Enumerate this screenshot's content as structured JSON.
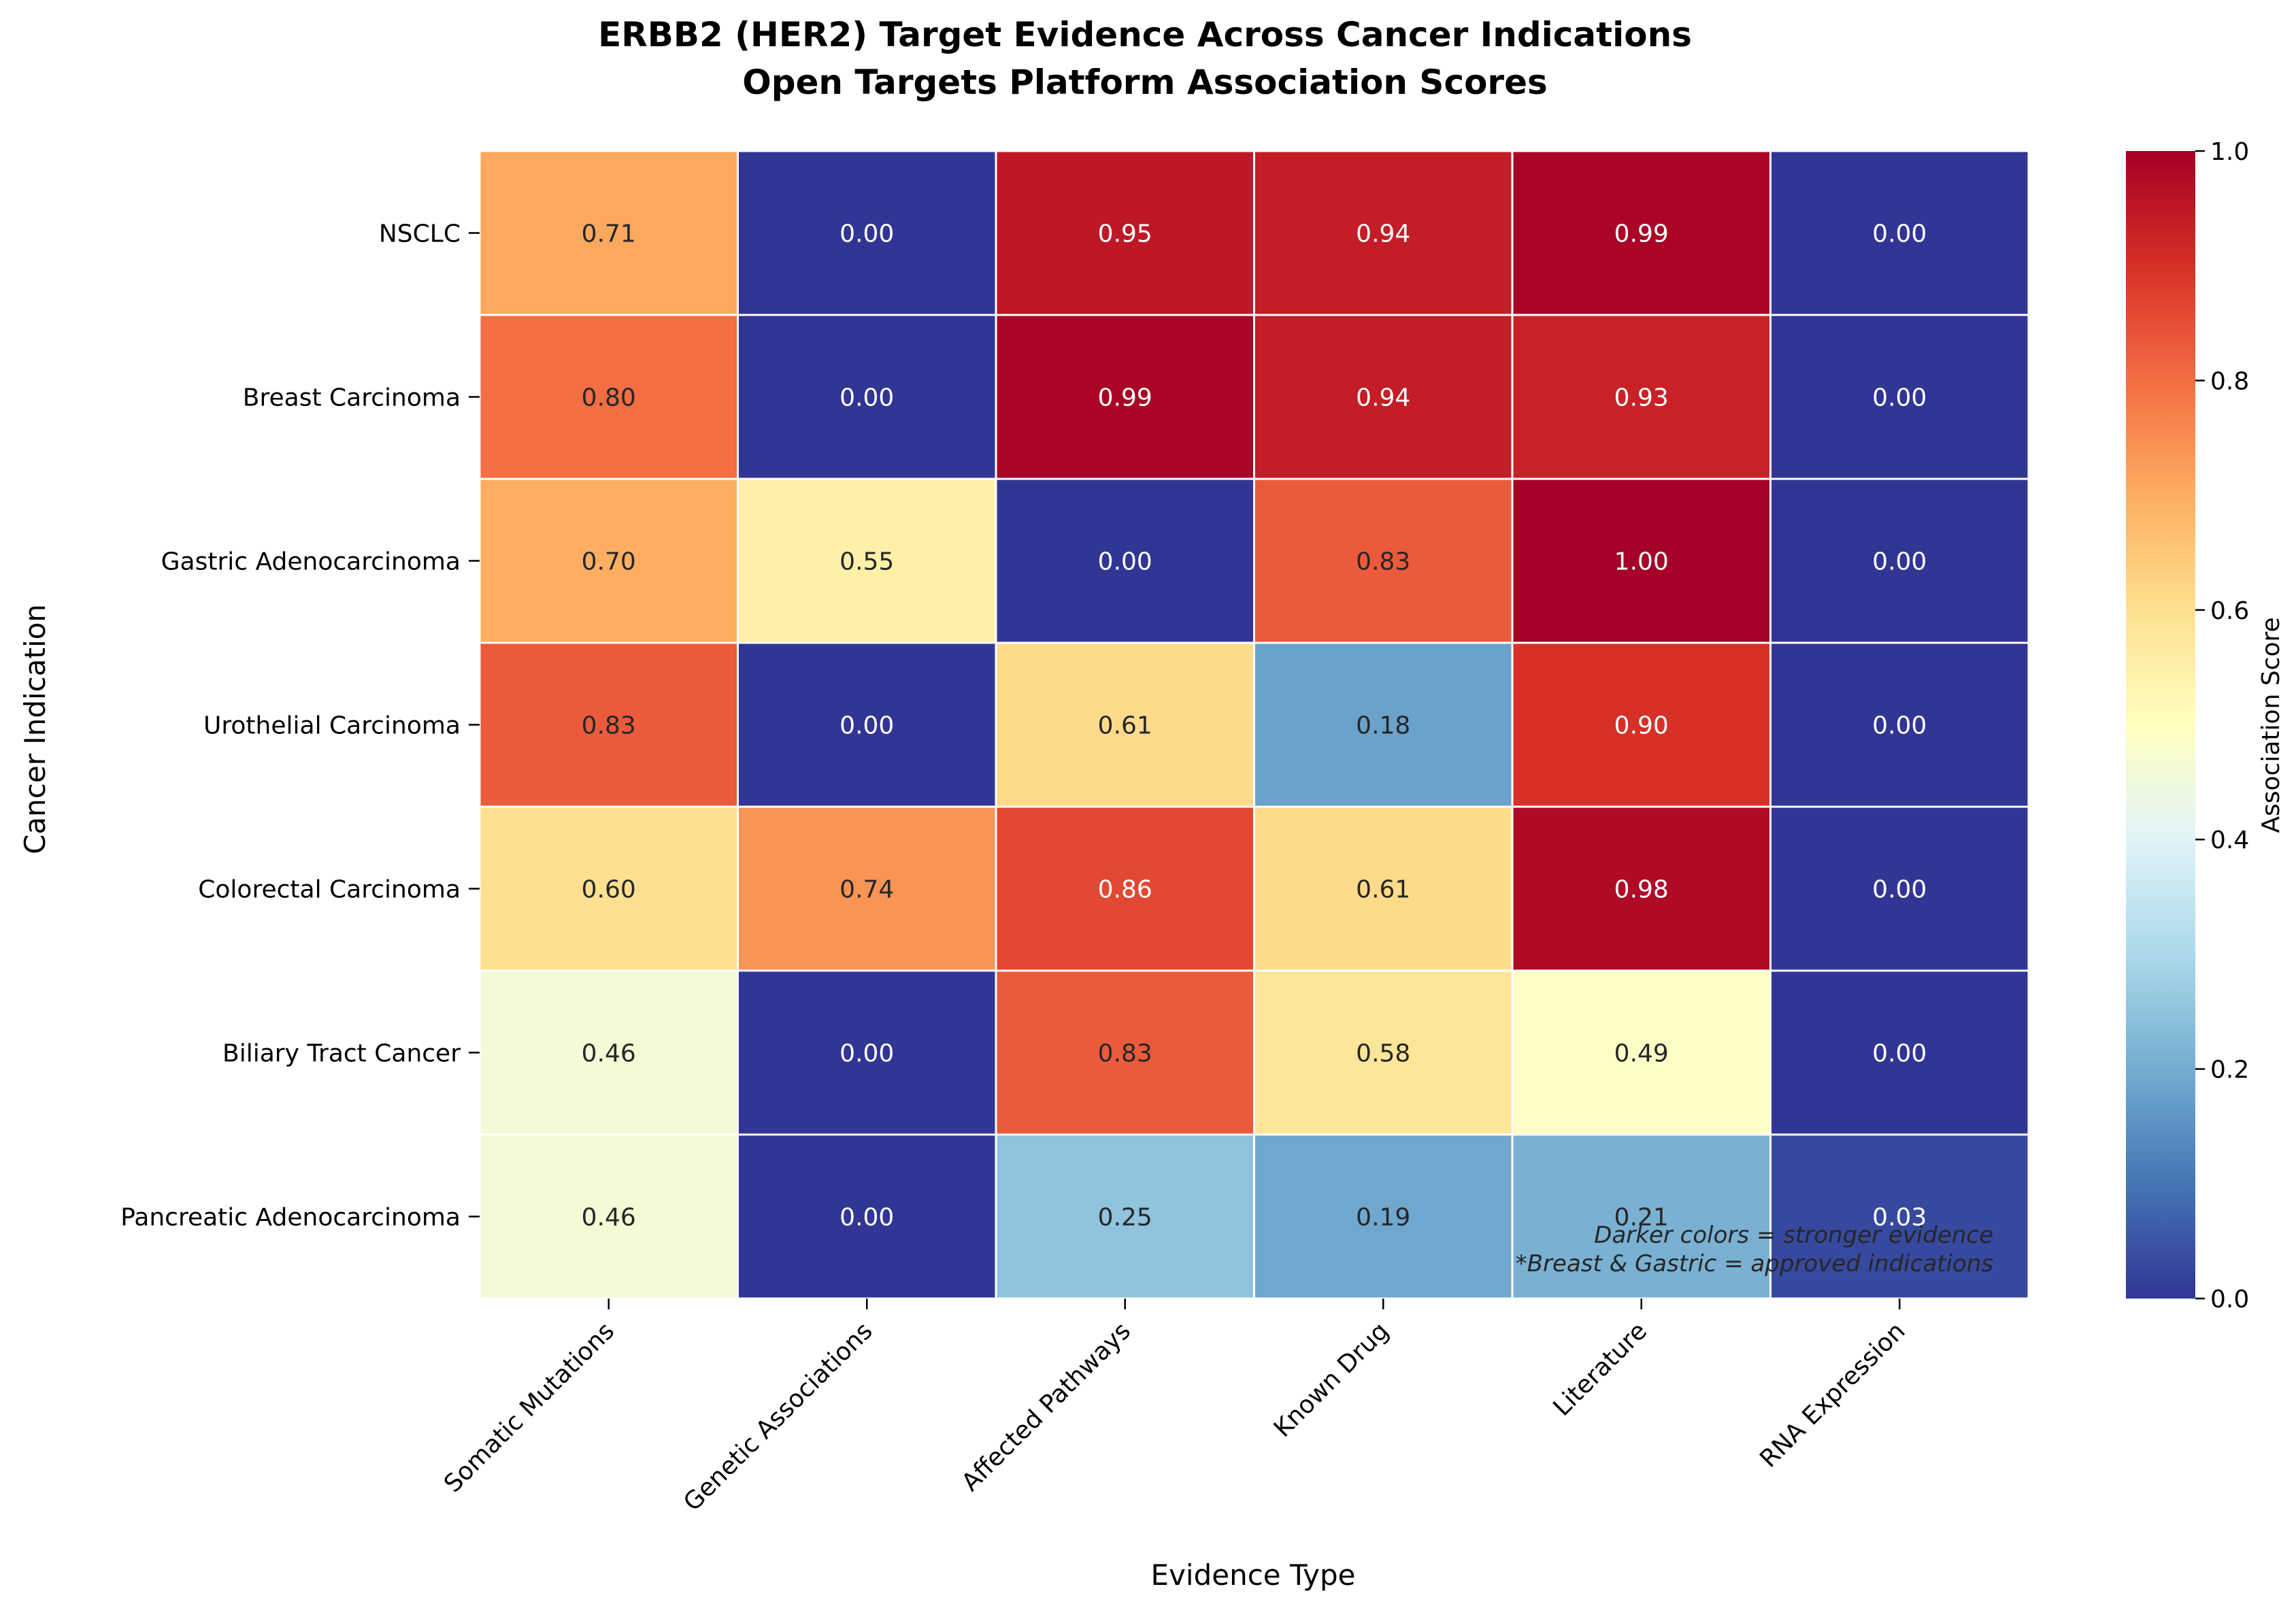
{
  "chart_data": {
    "type": "heatmap",
    "title_line1": "ERBB2 (HER2) Target Evidence Across Cancer Indications",
    "title_line2": "Open Targets Platform Association Scores",
    "xlabel": "Evidence Type",
    "ylabel": "Cancer Indication",
    "colorbar_label": "Association Score",
    "colormap": "RdYlBu_r",
    "vmin": 0.0,
    "vmax": 1.0,
    "colorbar_ticks": [
      "0.0",
      "0.2",
      "0.4",
      "0.6",
      "0.8",
      "1.0"
    ],
    "columns": [
      "Somatic Mutations",
      "Genetic Associations",
      "Affected Pathways",
      "Known Drug",
      "Literature",
      "RNA Expression"
    ],
    "rows": [
      "NSCLC",
      "Breast Carcinoma",
      "Gastric Adenocarcinoma",
      "Urothelial Carcinoma",
      "Colorectal Carcinoma",
      "Biliary Tract Cancer",
      "Pancreatic Adenocarcinoma"
    ],
    "values": [
      [
        0.71,
        0.0,
        0.95,
        0.94,
        0.99,
        0.0
      ],
      [
        0.8,
        0.0,
        0.99,
        0.94,
        0.93,
        0.0
      ],
      [
        0.7,
        0.55,
        0.0,
        0.83,
        1.0,
        0.0
      ],
      [
        0.83,
        0.0,
        0.61,
        0.18,
        0.9,
        0.0
      ],
      [
        0.6,
        0.74,
        0.86,
        0.61,
        0.98,
        0.0
      ],
      [
        0.46,
        0.0,
        0.83,
        0.58,
        0.49,
        0.0
      ],
      [
        0.46,
        0.0,
        0.25,
        0.19,
        0.21,
        0.03
      ]
    ],
    "annotation_line1": "Darker colors = stronger evidence",
    "annotation_line2": "*Breast & Gastric = approved indications"
  }
}
